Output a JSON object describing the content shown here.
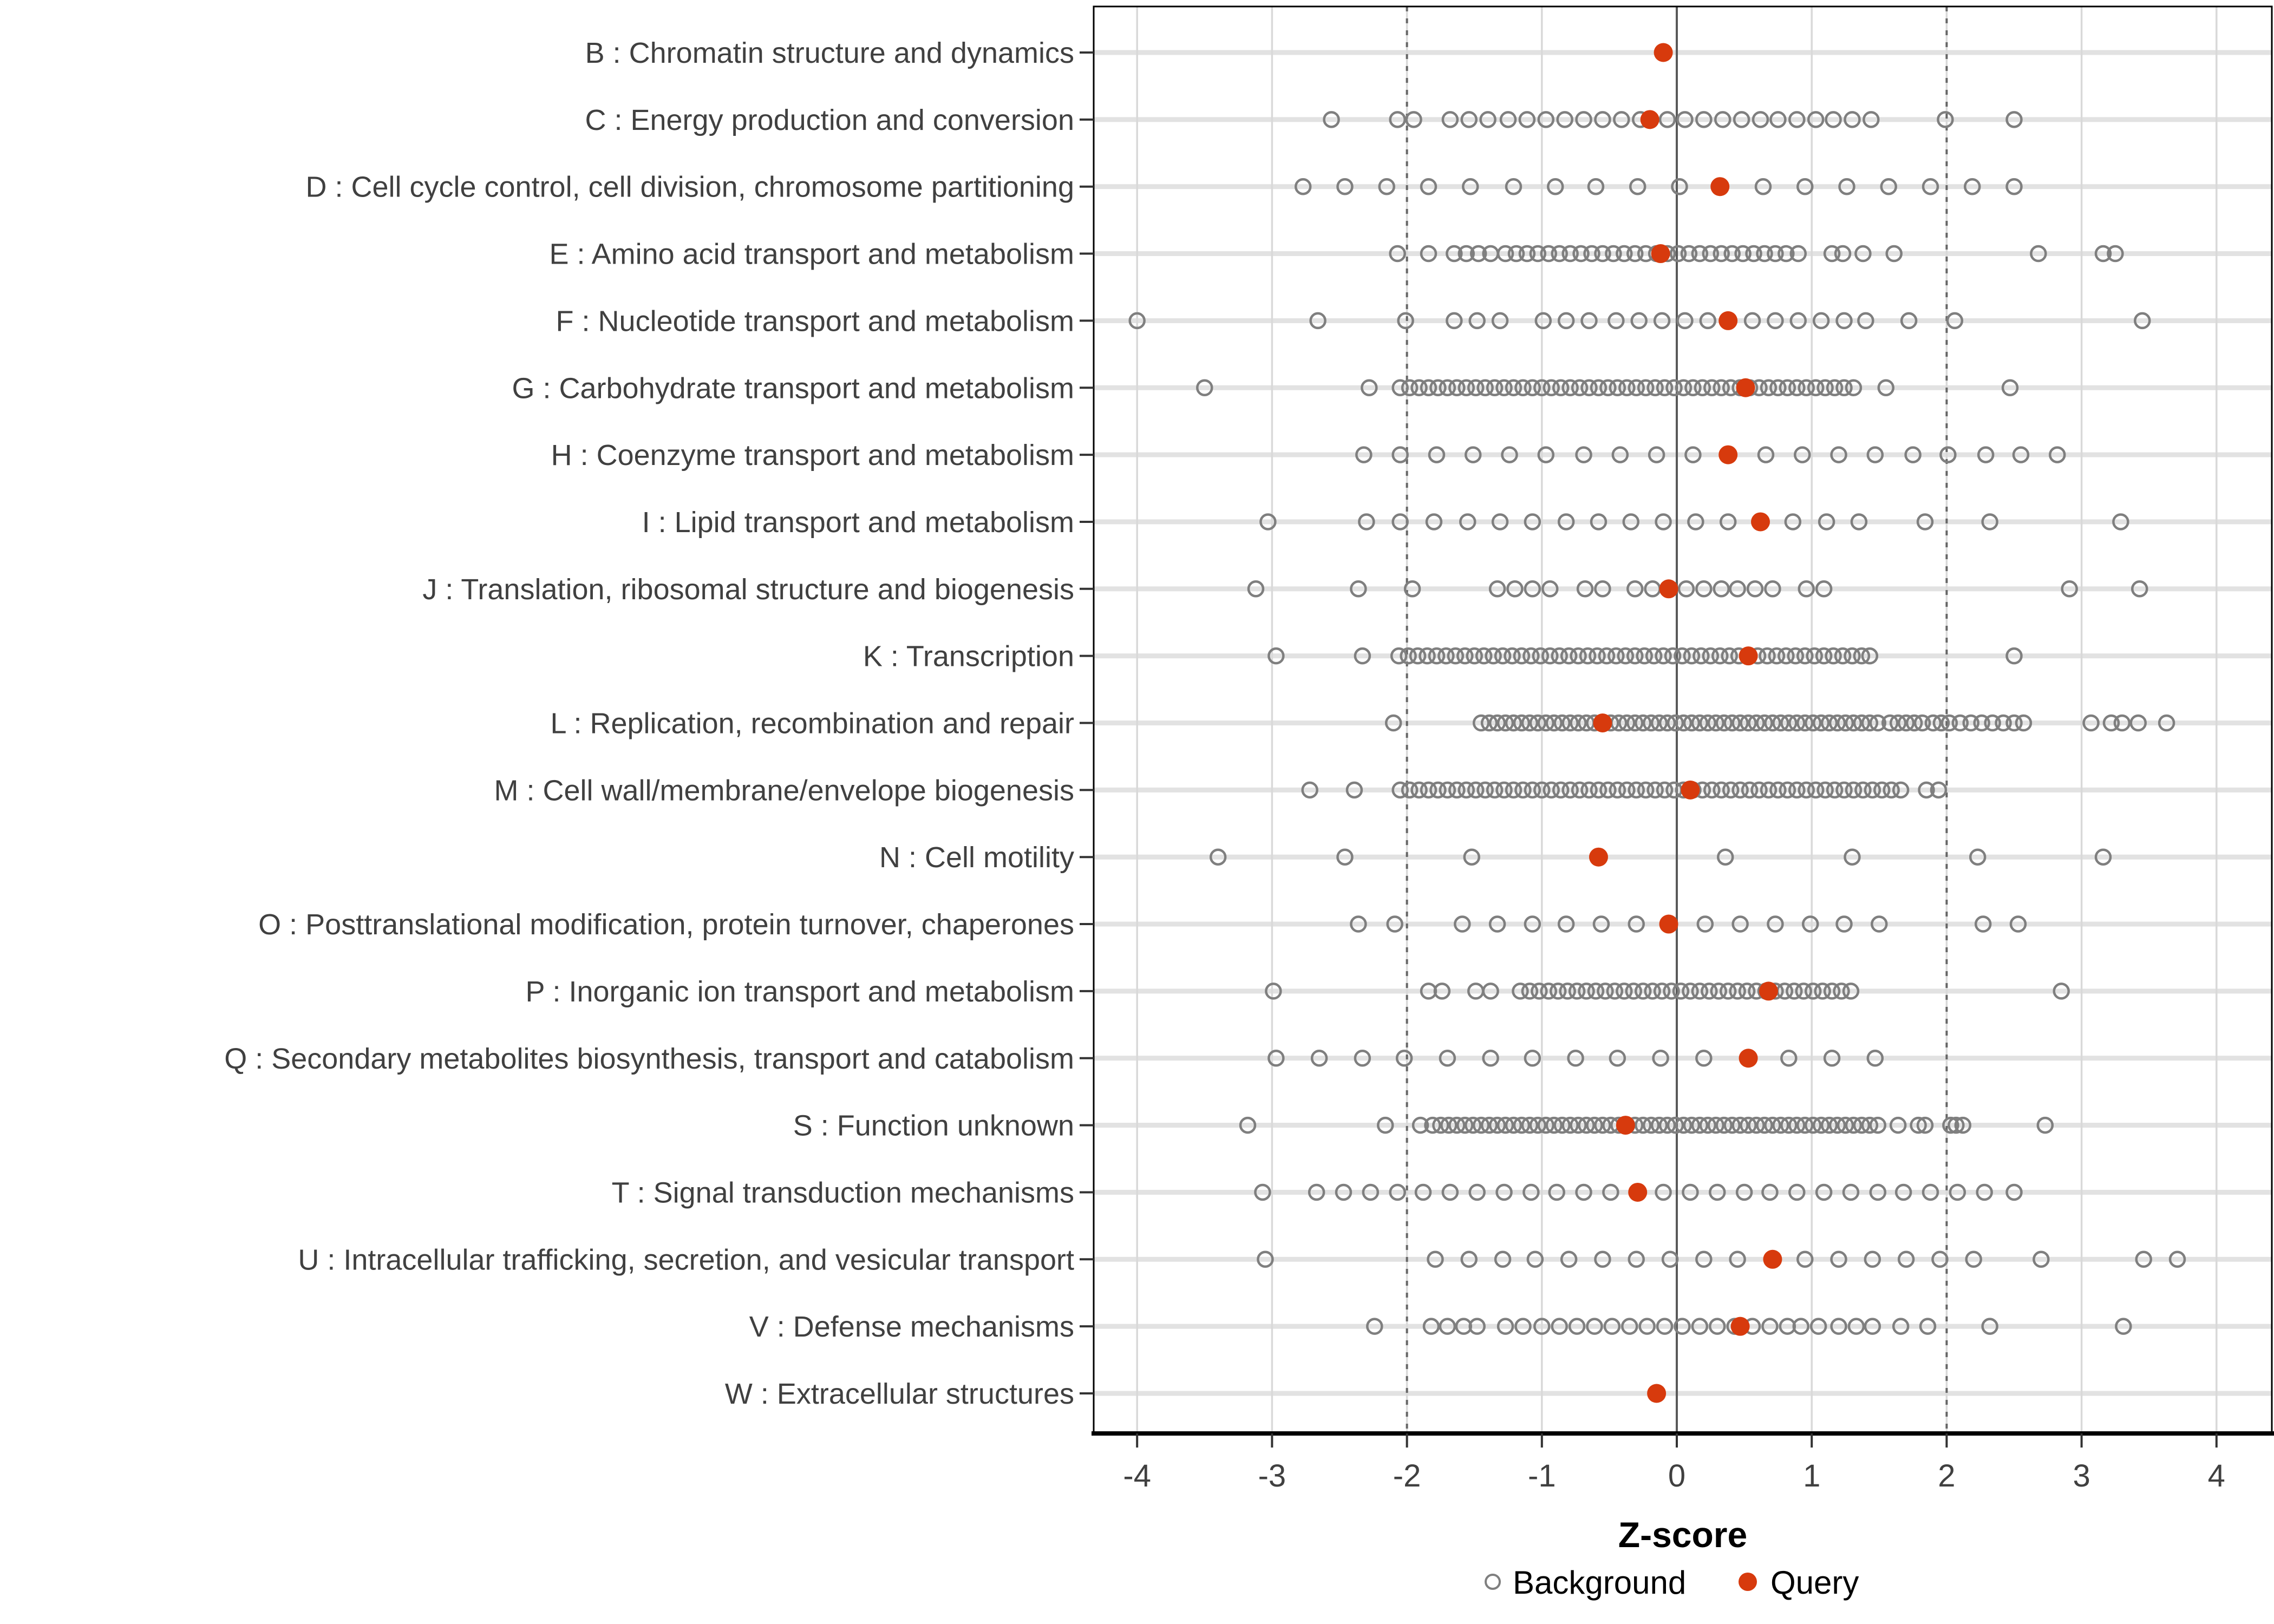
{
  "colors": {
    "query": "#D73A0D",
    "background_stroke": "#7F7F7F",
    "gridline": "#D9D9D9",
    "row_band": "#E2E2E2",
    "dashed_line": "#666666",
    "zero_line": "#5A5A5A",
    "axis_text": "#404040",
    "tick_mark": "#333333",
    "panel_border": "#000000"
  },
  "chart_data": {
    "type": "scatter",
    "title": "",
    "xlabel": "Z-score",
    "ylabel": "",
    "x_ticks": [
      -4,
      -3,
      -2,
      -1,
      0,
      1,
      2,
      3,
      4
    ],
    "xlim": [
      -4.35,
      4.42
    ],
    "grid": "major-x and row bands",
    "reference_lines": {
      "solid": [
        0
      ],
      "dashed": [
        -2,
        2
      ]
    },
    "legend_position": "bottom",
    "legend": [
      {
        "label": "Background",
        "marker": "open-gray-circle"
      },
      {
        "label": "Query",
        "marker": "filled-red-circle"
      }
    ],
    "categories": [
      {
        "code": "B",
        "label": "B : Chromatin structure and dynamics",
        "query": -0.1,
        "background": []
      },
      {
        "code": "C",
        "label": "C : Energy production and conversion",
        "query": -0.2,
        "background": [
          -2.56,
          -2.07,
          -1.95,
          -1.68,
          -1.54,
          -1.4,
          -1.25,
          -1.11,
          -0.97,
          -0.83,
          -0.69,
          -0.55,
          -0.41,
          -0.27,
          -0.07,
          0.06,
          0.2,
          0.34,
          0.48,
          0.62,
          0.75,
          0.89,
          1.03,
          1.16,
          1.3,
          1.44,
          1.99,
          2.5
        ]
      },
      {
        "code": "D",
        "label": "D : Cell cycle control, cell division, chromosome partitioning",
        "query": 0.32,
        "background": [
          -2.77,
          -2.46,
          -2.15,
          -1.84,
          -1.53,
          -1.21,
          -0.9,
          -0.6,
          -0.29,
          0.02,
          0.64,
          0.95,
          1.26,
          1.57,
          1.88,
          2.19,
          2.5
        ]
      },
      {
        "code": "E",
        "label": "E : Amino acid transport and metabolism",
        "query": -0.12,
        "background": [
          -2.07,
          -1.84,
          -1.65,
          -1.56,
          -1.47,
          -1.38,
          -1.27,
          -1.19,
          -1.11,
          -1.03,
          -0.95,
          -0.87,
          -0.79,
          -0.71,
          -0.63,
          -0.55,
          -0.47,
          -0.39,
          -0.31,
          -0.23,
          -0.15,
          -0.07,
          0.01,
          0.09,
          0.17,
          0.25,
          0.33,
          0.41,
          0.49,
          0.57,
          0.65,
          0.73,
          0.81,
          0.9,
          1.15,
          1.23,
          1.38,
          1.61,
          2.68,
          3.16,
          3.25
        ]
      },
      {
        "code": "F",
        "label": "F : Nucleotide transport and metabolism",
        "query": 0.38,
        "background": [
          -4.0,
          -2.66,
          -2.01,
          -1.65,
          -1.48,
          -1.31,
          -0.99,
          -0.82,
          -0.65,
          -0.45,
          -0.28,
          -0.11,
          0.06,
          0.23,
          0.56,
          0.73,
          0.9,
          1.07,
          1.24,
          1.4,
          1.72,
          2.06,
          3.45
        ]
      },
      {
        "code": "G",
        "label": "G : Carbohydrate transport and metabolism",
        "query": 0.51,
        "background": [
          -3.5,
          -2.28,
          -2.05,
          -1.98,
          -1.91,
          -1.84,
          -1.77,
          -1.7,
          -1.63,
          -1.56,
          -1.49,
          -1.42,
          -1.35,
          -1.28,
          -1.21,
          -1.14,
          -1.07,
          -1.0,
          -0.93,
          -0.86,
          -0.79,
          -0.72,
          -0.65,
          -0.58,
          -0.51,
          -0.44,
          -0.37,
          -0.3,
          -0.23,
          -0.16,
          -0.09,
          -0.02,
          0.05,
          0.12,
          0.19,
          0.26,
          0.33,
          0.4,
          0.47,
          0.54,
          0.61,
          0.68,
          0.75,
          0.82,
          0.89,
          0.96,
          1.03,
          1.1,
          1.17,
          1.24,
          1.31,
          1.55,
          2.47
        ]
      },
      {
        "code": "H",
        "label": "H : Coenzyme transport and metabolism",
        "query": 0.38,
        "background": [
          -2.32,
          -2.05,
          -1.78,
          -1.51,
          -1.24,
          -0.97,
          -0.69,
          -0.42,
          -0.15,
          0.12,
          0.66,
          0.93,
          1.2,
          1.47,
          1.75,
          2.01,
          2.29,
          2.55,
          2.82
        ]
      },
      {
        "code": "I",
        "label": "I : Lipid transport and metabolism",
        "query": 0.62,
        "background": [
          -3.03,
          -2.3,
          -2.05,
          -1.8,
          -1.55,
          -1.31,
          -1.07,
          -0.82,
          -0.58,
          -0.34,
          -0.1,
          0.14,
          0.38,
          0.86,
          1.11,
          1.35,
          1.84,
          2.32,
          3.29
        ]
      },
      {
        "code": "J",
        "label": "J : Translation, ribosomal structure and biogenesis",
        "query": -0.06,
        "background": [
          -3.12,
          -2.36,
          -1.96,
          -1.33,
          -1.2,
          -1.07,
          -0.94,
          -0.68,
          -0.55,
          -0.31,
          -0.18,
          0.07,
          0.2,
          0.33,
          0.45,
          0.58,
          0.71,
          0.96,
          1.09,
          2.91,
          3.43
        ]
      },
      {
        "code": "K",
        "label": "K : Transcription",
        "query": 0.53,
        "background": [
          -2.97,
          -2.33,
          -2.06,
          -1.99,
          -1.92,
          -1.85,
          -1.78,
          -1.71,
          -1.64,
          -1.57,
          -1.5,
          -1.43,
          -1.36,
          -1.29,
          -1.22,
          -1.15,
          -1.08,
          -1.01,
          -0.94,
          -0.87,
          -0.8,
          -0.73,
          -0.66,
          -0.59,
          -0.52,
          -0.45,
          -0.38,
          -0.31,
          -0.24,
          -0.17,
          -0.1,
          -0.03,
          0.04,
          0.11,
          0.18,
          0.25,
          0.32,
          0.39,
          0.46,
          0.53,
          0.6,
          0.67,
          0.74,
          0.81,
          0.88,
          0.95,
          1.02,
          1.09,
          1.16,
          1.23,
          1.3,
          1.37,
          1.43,
          2.5
        ]
      },
      {
        "code": "L",
        "label": "L : Replication, recombination and repair",
        "query": -0.55,
        "background": [
          -2.1,
          -1.45,
          -1.39,
          -1.33,
          -1.27,
          -1.21,
          -1.15,
          -1.09,
          -1.03,
          -0.97,
          -0.91,
          -0.85,
          -0.79,
          -0.73,
          -0.67,
          -0.61,
          -0.55,
          -0.49,
          -0.43,
          -0.37,
          -0.31,
          -0.25,
          -0.19,
          -0.13,
          -0.07,
          -0.01,
          0.05,
          0.11,
          0.17,
          0.23,
          0.29,
          0.35,
          0.41,
          0.47,
          0.53,
          0.59,
          0.65,
          0.71,
          0.77,
          0.83,
          0.89,
          0.95,
          1.01,
          1.07,
          1.13,
          1.19,
          1.25,
          1.31,
          1.37,
          1.43,
          1.49,
          1.58,
          1.64,
          1.7,
          1.76,
          1.82,
          1.9,
          1.96,
          2.02,
          2.1,
          2.18,
          2.26,
          2.34,
          2.42,
          2.5,
          2.57,
          3.07,
          3.22,
          3.3,
          3.42,
          3.63
        ]
      },
      {
        "code": "M",
        "label": "M : Cell wall/membrane/envelope biogenesis",
        "query": 0.1,
        "background": [
          -2.72,
          -2.39,
          -2.05,
          -1.98,
          -1.91,
          -1.84,
          -1.77,
          -1.7,
          -1.63,
          -1.56,
          -1.49,
          -1.42,
          -1.35,
          -1.28,
          -1.21,
          -1.14,
          -1.07,
          -1.0,
          -0.93,
          -0.86,
          -0.79,
          -0.72,
          -0.65,
          -0.58,
          -0.51,
          -0.44,
          -0.37,
          -0.3,
          -0.23,
          -0.16,
          -0.09,
          -0.02,
          0.05,
          0.12,
          0.19,
          0.26,
          0.33,
          0.4,
          0.47,
          0.54,
          0.61,
          0.68,
          0.75,
          0.82,
          0.89,
          0.96,
          1.03,
          1.1,
          1.17,
          1.24,
          1.31,
          1.38,
          1.45,
          1.52,
          1.59,
          1.66,
          1.85,
          1.94
        ]
      },
      {
        "code": "N",
        "label": "N : Cell motility",
        "query": -0.58,
        "background": [
          -3.4,
          -2.46,
          -1.52,
          0.36,
          1.3,
          2.23,
          3.16
        ]
      },
      {
        "code": "O",
        "label": "O : Posttranslational modification, protein turnover, chaperones",
        "query": -0.06,
        "background": [
          -2.36,
          -2.09,
          -1.59,
          -1.33,
          -1.07,
          -0.82,
          -0.56,
          -0.3,
          0.21,
          0.47,
          0.73,
          0.99,
          1.24,
          1.5,
          2.27,
          2.53
        ]
      },
      {
        "code": "P",
        "label": "P : Inorganic ion transport and metabolism",
        "query": 0.68,
        "background": [
          -2.99,
          -1.84,
          -1.74,
          -1.49,
          -1.38,
          -1.16,
          -1.09,
          -1.02,
          -0.95,
          -0.88,
          -0.81,
          -0.74,
          -0.67,
          -0.6,
          -0.53,
          -0.46,
          -0.39,
          -0.32,
          -0.25,
          -0.18,
          -0.11,
          -0.04,
          0.03,
          0.1,
          0.17,
          0.24,
          0.31,
          0.38,
          0.45,
          0.52,
          0.59,
          0.66,
          0.73,
          0.8,
          0.87,
          0.94,
          1.01,
          1.08,
          1.15,
          1.22,
          1.29,
          2.85
        ]
      },
      {
        "code": "Q",
        "label": "Q : Secondary metabolites biosynthesis, transport and catabolism",
        "query": 0.53,
        "background": [
          -2.97,
          -2.65,
          -2.33,
          -2.02,
          -1.7,
          -1.38,
          -1.07,
          -0.75,
          -0.44,
          -0.12,
          0.2,
          0.83,
          1.15,
          1.47
        ]
      },
      {
        "code": "S",
        "label": "S : Function unknown",
        "query": -0.38,
        "background": [
          -3.18,
          -2.16,
          -1.9,
          -1.81,
          -1.75,
          -1.69,
          -1.63,
          -1.57,
          -1.51,
          -1.45,
          -1.39,
          -1.33,
          -1.27,
          -1.21,
          -1.15,
          -1.09,
          -1.03,
          -0.97,
          -0.91,
          -0.85,
          -0.79,
          -0.73,
          -0.67,
          -0.61,
          -0.55,
          -0.49,
          -0.43,
          -0.37,
          -0.31,
          -0.25,
          -0.19,
          -0.13,
          -0.07,
          -0.01,
          0.05,
          0.11,
          0.17,
          0.23,
          0.29,
          0.35,
          0.41,
          0.47,
          0.53,
          0.59,
          0.65,
          0.71,
          0.77,
          0.83,
          0.89,
          0.95,
          1.01,
          1.07,
          1.13,
          1.19,
          1.25,
          1.31,
          1.37,
          1.43,
          1.49,
          1.64,
          1.79,
          1.84,
          2.03,
          2.07,
          2.12,
          2.73
        ]
      },
      {
        "code": "T",
        "label": "T : Signal transduction mechanisms",
        "query": -0.29,
        "background": [
          -3.07,
          -2.67,
          -2.47,
          -2.27,
          -2.07,
          -1.88,
          -1.68,
          -1.48,
          -1.28,
          -1.08,
          -0.89,
          -0.69,
          -0.49,
          -0.1,
          0.1,
          0.3,
          0.5,
          0.69,
          0.89,
          1.09,
          1.29,
          1.49,
          1.68,
          1.88,
          2.08,
          2.28,
          2.5
        ]
      },
      {
        "code": "U",
        "label": "U : Intracellular trafficking, secretion, and vesicular transport",
        "query": 0.71,
        "background": [
          -3.05,
          -1.79,
          -1.54,
          -1.29,
          -1.05,
          -0.8,
          -0.55,
          -0.3,
          -0.05,
          0.2,
          0.45,
          0.95,
          1.2,
          1.45,
          1.7,
          1.95,
          2.2,
          2.7,
          3.46,
          3.71
        ]
      },
      {
        "code": "V",
        "label": "V : Defense mechanisms",
        "query": 0.47,
        "background": [
          -2.24,
          -1.82,
          -1.7,
          -1.58,
          -1.48,
          -1.27,
          -1.14,
          -1.0,
          -0.87,
          -0.74,
          -0.61,
          -0.48,
          -0.35,
          -0.22,
          -0.09,
          0.04,
          0.17,
          0.3,
          0.43,
          0.56,
          0.69,
          0.82,
          0.92,
          1.05,
          1.2,
          1.33,
          1.45,
          1.66,
          1.86,
          2.32,
          3.31
        ]
      },
      {
        "code": "W",
        "label": "W : Extracellular structures",
        "query": -0.15,
        "background": []
      }
    ]
  }
}
